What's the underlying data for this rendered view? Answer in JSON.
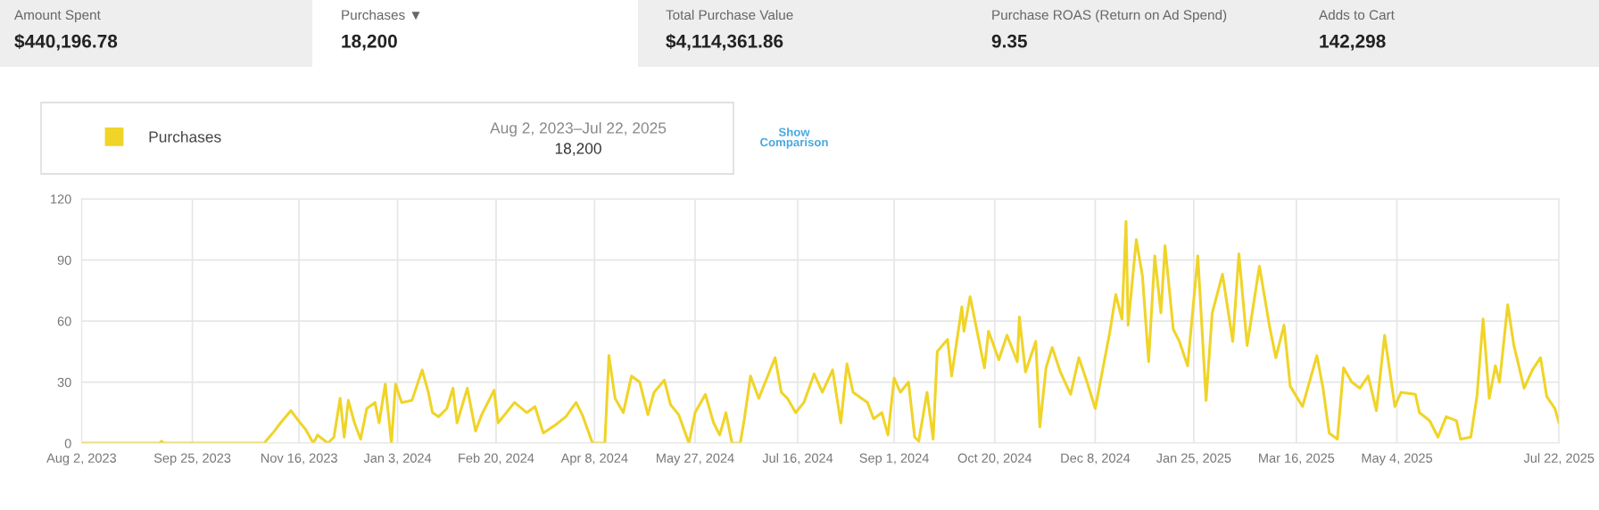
{
  "chart_data": {
    "type": "line",
    "annotations": [
      "Amount Spent",
      "$440,196.78",
      "Purchases ▼",
      "18,200",
      "Total Purchase Value",
      "$4,114,361.86",
      "Purchase ROAS (Return on Ad Spend)",
      "9.35",
      "Adds to Cart",
      "142,298",
      "Aug 2, 2023–Jul 22, 2025",
      "18,200",
      "Show\nComparison"
    ],
    "x": [
      "2023-08-02",
      "2023-09-09",
      "2023-09-10",
      "2023-09-11",
      "2023-10-30",
      "2023-11-04",
      "2023-11-07",
      "2023-11-12",
      "2023-11-15",
      "2023-11-19",
      "2023-11-23",
      "2023-11-25",
      "2023-11-30",
      "2023-12-03",
      "2023-12-06",
      "2023-12-08",
      "2023-12-10",
      "2023-12-13",
      "2023-12-16",
      "2023-12-19",
      "2023-12-23",
      "2023-12-25",
      "2023-12-28",
      "2023-12-31",
      "2024-01-02",
      "2024-01-05",
      "2024-01-10",
      "2024-01-15",
      "2024-01-18",
      "2024-01-20",
      "2024-01-23",
      "2024-01-27",
      "2024-01-30",
      "2024-02-01",
      "2024-02-06",
      "2024-02-10",
      "2024-02-13",
      "2024-02-19",
      "2024-02-21",
      "2024-02-29",
      "2024-03-06",
      "2024-03-10",
      "2024-03-14",
      "2024-03-20",
      "2024-03-25",
      "2024-03-30",
      "2024-04-02",
      "2024-04-07",
      "2024-04-13",
      "2024-04-15",
      "2024-04-18",
      "2024-04-22",
      "2024-04-26",
      "2024-04-30",
      "2024-05-04",
      "2024-05-07",
      "2024-05-12",
      "2024-05-15",
      "2024-05-19",
      "2024-05-24",
      "2024-05-27",
      "2024-06-01",
      "2024-06-05",
      "2024-06-08",
      "2024-06-11",
      "2024-06-14",
      "2024-06-18",
      "2024-06-20",
      "2024-06-23",
      "2024-06-27",
      "2024-07-01",
      "2024-07-05",
      "2024-07-08",
      "2024-07-11",
      "2024-07-15",
      "2024-07-19",
      "2024-07-24",
      "2024-07-28",
      "2024-08-02",
      "2024-08-06",
      "2024-08-09",
      "2024-08-12",
      "2024-08-19",
      "2024-08-22",
      "2024-08-26",
      "2024-08-29",
      "2024-09-01",
      "2024-09-04",
      "2024-09-08",
      "2024-09-11",
      "2024-09-13",
      "2024-09-17",
      "2024-09-20",
      "2024-09-22",
      "2024-09-27",
      "2024-09-29",
      "2024-10-04",
      "2024-10-05",
      "2024-10-08",
      "2024-10-11",
      "2024-10-15",
      "2024-10-17",
      "2024-10-22",
      "2024-10-26",
      "2024-10-31",
      "2024-11-01",
      "2024-11-04",
      "2024-11-09",
      "2024-11-11",
      "2024-11-14",
      "2024-11-17",
      "2024-11-21",
      "2024-11-26",
      "2024-11-30",
      "2024-12-04",
      "2024-12-08",
      "2024-12-11",
      "2024-12-15",
      "2024-12-18",
      "2024-12-21",
      "2024-12-23",
      "2024-12-24",
      "2024-12-28",
      "2024-12-31",
      "2025-01-03",
      "2025-01-06",
      "2025-01-09",
      "2025-01-11",
      "2025-01-15",
      "2025-01-18",
      "2025-01-22",
      "2025-01-27",
      "2025-01-31",
      "2025-02-03",
      "2025-02-08",
      "2025-02-13",
      "2025-02-16",
      "2025-02-20",
      "2025-02-26",
      "2025-03-03",
      "2025-03-06",
      "2025-03-10",
      "2025-03-13",
      "2025-03-19",
      "2025-03-26",
      "2025-03-29",
      "2025-04-01",
      "2025-04-05",
      "2025-04-08",
      "2025-04-12",
      "2025-04-16",
      "2025-04-20",
      "2025-04-24",
      "2025-04-28",
      "2025-05-03",
      "2025-05-06",
      "2025-05-13",
      "2025-05-15",
      "2025-05-20",
      "2025-05-24",
      "2025-05-28",
      "2025-06-02",
      "2025-06-04",
      "2025-06-09",
      "2025-06-12",
      "2025-06-15",
      "2025-06-18",
      "2025-06-21",
      "2025-06-23",
      "2025-06-27",
      "2025-06-30",
      "2025-07-05",
      "2025-07-09",
      "2025-07-13",
      "2025-07-16",
      "2025-07-20",
      "2025-07-22"
    ],
    "series": [
      {
        "name": "Purchases",
        "color": "#f0d428",
        "values": [
          0,
          0,
          1,
          0,
          0,
          6,
          10,
          16,
          12,
          7,
          0,
          4,
          0,
          3,
          22,
          3,
          21,
          10,
          2,
          17,
          20,
          10,
          29,
          0,
          29,
          20,
          21,
          36,
          25,
          15,
          13,
          17,
          27,
          10,
          27,
          6,
          14,
          26,
          10,
          20,
          15,
          18,
          5,
          9,
          13,
          20,
          14,
          0,
          0,
          43,
          22,
          15,
          33,
          30,
          14,
          25,
          31,
          19,
          14,
          0,
          15,
          24,
          10,
          4,
          15,
          0,
          0,
          12,
          33,
          22,
          32,
          42,
          25,
          22,
          15,
          20,
          34,
          25,
          36,
          10,
          39,
          25,
          20,
          12,
          15,
          4,
          32,
          25,
          30,
          3,
          1,
          25,
          2,
          45,
          51,
          33,
          67,
          55,
          72,
          57,
          37,
          55,
          41,
          53,
          40,
          62,
          35,
          50,
          8,
          37,
          47,
          35,
          24,
          42,
          30,
          17,
          33,
          54,
          73,
          61,
          109,
          58,
          100,
          82,
          40,
          92,
          64,
          97,
          56,
          50,
          38,
          92,
          21,
          64,
          83,
          50,
          93,
          48,
          87,
          57,
          42,
          58,
          28,
          18,
          43,
          27,
          5,
          2,
          37,
          30,
          27,
          33,
          16,
          53,
          18,
          25,
          24,
          15,
          11,
          3,
          13,
          11,
          2,
          3,
          23,
          61,
          22,
          38,
          30,
          68,
          48,
          27,
          36,
          42,
          23,
          17,
          10
        ]
      }
    ],
    "xlim": [
      "2023-08-02",
      "2025-07-22"
    ],
    "xticks": [
      {
        "value": "2023-08-02",
        "label": "Aug 2, 2023"
      },
      {
        "value": "2023-09-25",
        "label": "Sep 25, 2023"
      },
      {
        "value": "2023-11-16",
        "label": "Nov 16, 2023"
      },
      {
        "value": "2024-01-03",
        "label": "Jan 3, 2024"
      },
      {
        "value": "2024-02-20",
        "label": "Feb 20, 2024"
      },
      {
        "value": "2024-04-08",
        "label": "Apr 8, 2024"
      },
      {
        "value": "2024-05-27",
        "label": "May 27, 2024"
      },
      {
        "value": "2024-07-16",
        "label": "Jul 16, 2024"
      },
      {
        "value": "2024-09-01",
        "label": "Sep 1, 2024"
      },
      {
        "value": "2024-10-20",
        "label": "Oct 20, 2024"
      },
      {
        "value": "2024-12-08",
        "label": "Dec 8, 2024"
      },
      {
        "value": "2025-01-25",
        "label": "Jan 25, 2025"
      },
      {
        "value": "2025-03-16",
        "label": "Mar 16, 2025"
      },
      {
        "value": "2025-05-04",
        "label": "May 4, 2025"
      },
      {
        "value": "2025-07-22",
        "label": "Jul 22, 2025"
      }
    ],
    "ylim": [
      0,
      120
    ],
    "yticks": [
      0,
      30,
      60,
      90,
      120
    ],
    "grid": true,
    "legend": "top left",
    "marker": "none",
    "line_style": "solid"
  }
}
